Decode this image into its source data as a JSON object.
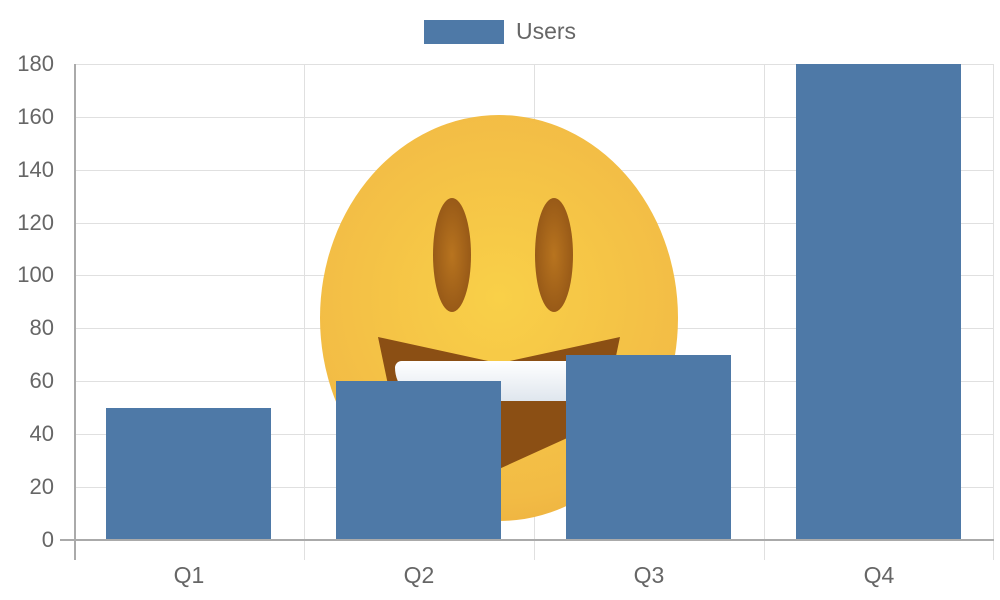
{
  "chart_data": {
    "type": "bar",
    "title": "",
    "xlabel": "",
    "ylabel": "",
    "categories": [
      "Q1",
      "Q2",
      "Q3",
      "Q4"
    ],
    "series": [
      {
        "name": "Users",
        "values": [
          50,
          60,
          70,
          180
        ],
        "color": "#4e79a7"
      }
    ],
    "ylim": [
      0,
      180
    ],
    "yticks": [
      0,
      20,
      40,
      60,
      80,
      100,
      120,
      140,
      160,
      180
    ],
    "grid": true,
    "legend_position": "top",
    "annotations": [
      "smiling emoji image overlaid behind bars"
    ]
  },
  "legend": {
    "label": "Users",
    "color": "#4e79a7"
  },
  "yticks": [
    "0",
    "20",
    "40",
    "60",
    "80",
    "100",
    "120",
    "140",
    "160",
    "180"
  ],
  "xticks": [
    "Q1",
    "Q2",
    "Q3",
    "Q4"
  ]
}
